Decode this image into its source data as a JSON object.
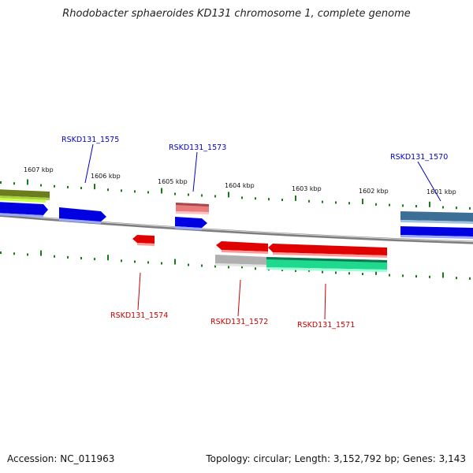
{
  "title": "Rhodobacter sphaeroides KD131 chromosome 1, complete genome",
  "footer": {
    "accession": "Accession: NC_011963",
    "stats": "Topology: circular; Length: 3,152,792 bp; Genes: 3,143"
  },
  "colors": {
    "label_upper": "#0000cc",
    "label_lower": "#cc0000",
    "tick": "#1a7a1a",
    "backbone": "#808080"
  },
  "scale_labels": [
    "1607 kbp",
    "1606 kbp",
    "1605 kbp",
    "1604 kbp",
    "1603 kbp",
    "1602 kbp",
    "1601 kbp"
  ],
  "gene_labels_upper": [
    "RSKD131_1575",
    "RSKD131_1573",
    "RSKD131_1570"
  ],
  "gene_labels_lower": [
    "RSKD131_1574",
    "RSKD131_1572",
    "RSKD131_1571"
  ]
}
